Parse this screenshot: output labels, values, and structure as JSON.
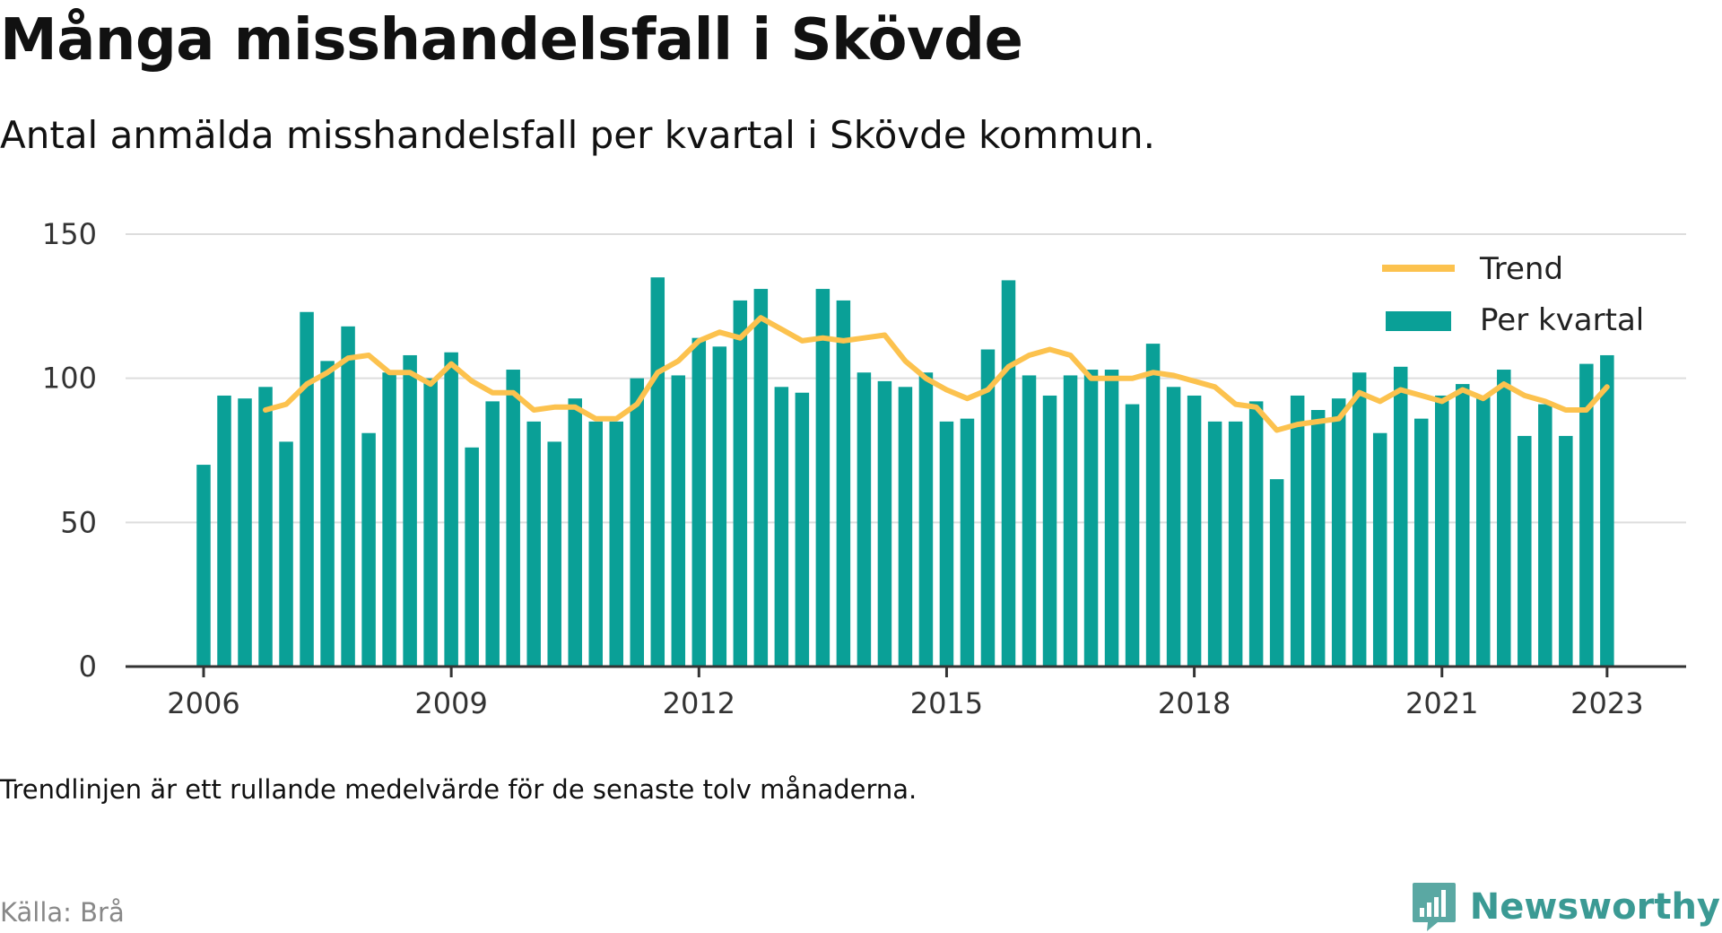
{
  "title": "Många misshandelsfall i Skövde",
  "subtitle": "Antal anmälda misshandelsfall per kvartal i Skövde kommun.",
  "note": "Trendlinjen är ett rullande medelvärde för de senaste tolv månaderna.",
  "source": "Källa: Brå",
  "brand": {
    "name": "Newsworthy",
    "icon": "bar-chart-speech-bubble-icon"
  },
  "colors": {
    "bars": "#0aa097",
    "trend": "#fcc24e",
    "grid": "#dddddd",
    "axis": "#333333"
  },
  "chart_data": {
    "type": "bar",
    "x_tick_labels": [
      "2006",
      "2009",
      "2012",
      "2015",
      "2018",
      "2021",
      "2023"
    ],
    "y_tick_labels": [
      "0",
      "50",
      "100",
      "150"
    ],
    "ylim": [
      0,
      150
    ],
    "grid": true,
    "legend_position": "top-right",
    "legend": [
      "Trend",
      "Per kvartal"
    ],
    "series": [
      {
        "name": "Per kvartal",
        "type": "bar",
        "x": [
          "2006 Q1",
          "2006 Q2",
          "2006 Q3",
          "2006 Q4",
          "2007 Q1",
          "2007 Q2",
          "2007 Q3",
          "2007 Q4",
          "2008 Q1",
          "2008 Q2",
          "2008 Q3",
          "2008 Q4",
          "2009 Q1",
          "2009 Q2",
          "2009 Q3",
          "2009 Q4",
          "2010 Q1",
          "2010 Q2",
          "2010 Q3",
          "2010 Q4",
          "2011 Q1",
          "2011 Q2",
          "2011 Q3",
          "2011 Q4",
          "2012 Q1",
          "2012 Q2",
          "2012 Q3",
          "2012 Q4",
          "2013 Q1",
          "2013 Q2",
          "2013 Q3",
          "2013 Q4",
          "2014 Q1",
          "2014 Q2",
          "2014 Q3",
          "2014 Q4",
          "2015 Q1",
          "2015 Q2",
          "2015 Q3",
          "2015 Q4",
          "2016 Q1",
          "2016 Q2",
          "2016 Q3",
          "2016 Q4",
          "2017 Q1",
          "2017 Q2",
          "2017 Q3",
          "2017 Q4",
          "2018 Q1",
          "2018 Q2",
          "2018 Q3",
          "2018 Q4",
          "2019 Q1",
          "2019 Q2",
          "2019 Q3",
          "2019 Q4",
          "2020 Q1",
          "2020 Q2",
          "2020 Q3",
          "2020 Q4",
          "2021 Q1",
          "2021 Q2",
          "2021 Q3",
          "2021 Q4",
          "2022 Q1",
          "2022 Q2",
          "2022 Q3",
          "2022 Q4",
          "2023 Q1"
        ],
        "values": [
          70,
          94,
          93,
          97,
          78,
          123,
          106,
          118,
          81,
          102,
          108,
          100,
          109,
          76,
          92,
          103,
          85,
          78,
          93,
          85,
          85,
          100,
          135,
          101,
          114,
          111,
          127,
          131,
          97,
          95,
          131,
          127,
          102,
          99,
          97,
          102,
          85,
          86,
          110,
          134,
          101,
          94,
          101,
          103,
          103,
          91,
          112,
          97,
          94,
          85,
          85,
          92,
          65,
          94,
          89,
          93,
          102,
          81,
          104,
          86,
          94,
          98,
          94,
          103,
          80,
          91,
          80,
          105,
          108
        ]
      },
      {
        "name": "Trend",
        "type": "line",
        "x": [
          "2006 Q4",
          "2007 Q1",
          "2007 Q2",
          "2007 Q3",
          "2007 Q4",
          "2008 Q1",
          "2008 Q2",
          "2008 Q3",
          "2008 Q4",
          "2009 Q1",
          "2009 Q2",
          "2009 Q3",
          "2009 Q4",
          "2010 Q1",
          "2010 Q2",
          "2010 Q3",
          "2010 Q4",
          "2011 Q1",
          "2011 Q2",
          "2011 Q3",
          "2011 Q4",
          "2012 Q1",
          "2012 Q2",
          "2012 Q3",
          "2012 Q4",
          "2013 Q1",
          "2013 Q2",
          "2013 Q3",
          "2013 Q4",
          "2014 Q1",
          "2014 Q2",
          "2014 Q3",
          "2014 Q4",
          "2015 Q1",
          "2015 Q2",
          "2015 Q3",
          "2015 Q4",
          "2016 Q1",
          "2016 Q2",
          "2016 Q3",
          "2016 Q4",
          "2017 Q1",
          "2017 Q2",
          "2017 Q3",
          "2017 Q4",
          "2018 Q1",
          "2018 Q2",
          "2018 Q3",
          "2018 Q4",
          "2019 Q1",
          "2019 Q2",
          "2019 Q3",
          "2019 Q4",
          "2020 Q1",
          "2020 Q2",
          "2020 Q3",
          "2020 Q4",
          "2021 Q1",
          "2021 Q2",
          "2021 Q3",
          "2021 Q4",
          "2022 Q1",
          "2022 Q2",
          "2022 Q3",
          "2022 Q4",
          "2023 Q1"
        ],
        "values": [
          89,
          91,
          98,
          102,
          107,
          108,
          102,
          102,
          98,
          105,
          99,
          95,
          95,
          89,
          90,
          90,
          86,
          86,
          91,
          102,
          106,
          113,
          116,
          114,
          121,
          117,
          113,
          114,
          113,
          114,
          115,
          106,
          100,
          96,
          93,
          96,
          104,
          108,
          110,
          108,
          100,
          100,
          100,
          102,
          101,
          99,
          97,
          91,
          90,
          82,
          84,
          85,
          86,
          95,
          92,
          96,
          94,
          92,
          96,
          93,
          98,
          94,
          92,
          89,
          89,
          97
        ]
      }
    ]
  }
}
